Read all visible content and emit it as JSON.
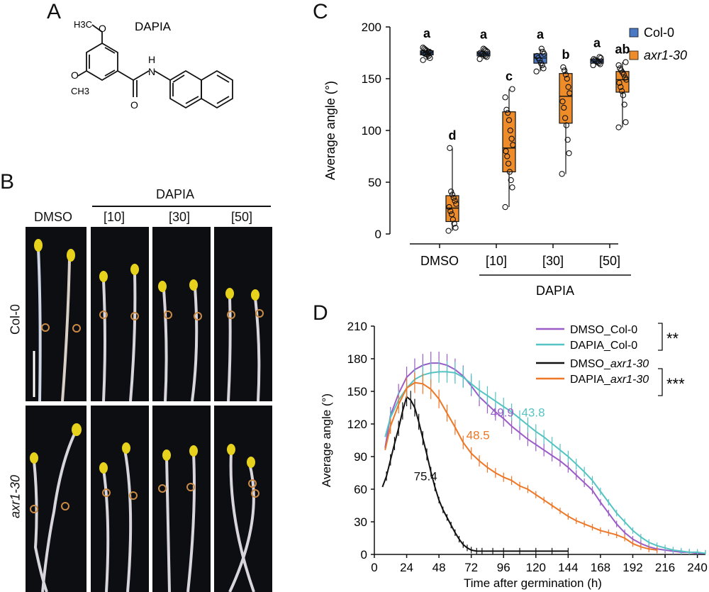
{
  "panels": {
    "a": {
      "letter": "A",
      "compound": "DAPIA",
      "atom_ch3_top": "H3C",
      "atom_ch3_bottom": "CH3",
      "atom_o1": "O",
      "atom_o2": "O",
      "atom_o3": "O",
      "atom_n": "N",
      "atom_h": "H"
    },
    "b": {
      "letter": "B",
      "treatment_group": "DAPIA",
      "columns": [
        "DMSO",
        "[10]",
        "[30]",
        "[50]"
      ],
      "rows": [
        "Col-0",
        "axr1-30"
      ]
    },
    "c": {
      "letter": "C"
    },
    "d": {
      "letter": "D"
    }
  },
  "chart_data": [
    {
      "type": "box",
      "id": "C",
      "ylabel": "Average angle (°)",
      "ylim": [
        0,
        200
      ],
      "yticks": [
        0,
        50,
        100,
        150,
        200
      ],
      "categories": [
        "DMSO",
        "[10]",
        "[30]",
        "[50]"
      ],
      "group_label": "DAPIA",
      "legend": [
        {
          "name": "Col-0",
          "color": "#4a78c4"
        },
        {
          "name": "axr1-30",
          "color": "#ef8c2a"
        }
      ],
      "series": [
        {
          "name": "Col-0",
          "color": "#4a78c4",
          "boxes": [
            {
              "category": "DMSO",
              "min": 168,
              "q1": 173,
              "median": 175,
              "q3": 177,
              "max": 180,
              "letter": "a",
              "points": [
                168,
                170,
                172,
                173,
                174,
                174,
                175,
                175,
                176,
                176,
                177,
                178,
                179,
                180
              ]
            },
            {
              "category": "[10]",
              "min": 169,
              "q1": 172,
              "median": 174,
              "q3": 176,
              "max": 179,
              "letter": "a",
              "points": [
                169,
                171,
                172,
                173,
                174,
                174,
                175,
                176,
                177,
                178,
                179
              ]
            },
            {
              "category": "[30]",
              "min": 157,
              "q1": 165,
              "median": 170,
              "q3": 174,
              "max": 179,
              "letter": "a",
              "points": [
                157,
                160,
                163,
                165,
                168,
                170,
                172,
                174,
                176,
                179
              ]
            },
            {
              "category": "[50]",
              "min": 163,
              "q1": 165,
              "median": 167,
              "q3": 169,
              "max": 171,
              "letter": "a",
              "points": [
                163,
                164,
                165,
                166,
                167,
                168,
                169,
                170,
                171
              ]
            }
          ]
        },
        {
          "name": "axr1-30",
          "color": "#ef8c2a",
          "boxes": [
            {
              "category": "DMSO",
              "min": 3,
              "q1": 12,
              "median": 25,
              "q3": 37,
              "max": 83,
              "letter": "d",
              "points": [
                3,
                6,
                10,
                14,
                19,
                22,
                26,
                29,
                32,
                35,
                38,
                41,
                83
              ]
            },
            {
              "category": "[10]",
              "min": 26,
              "q1": 60,
              "median": 83,
              "q3": 118,
              "max": 140,
              "letter": "c",
              "points": [
                26,
                45,
                52,
                60,
                68,
                75,
                80,
                86,
                92,
                100,
                110,
                117,
                120,
                132,
                140
              ]
            },
            {
              "category": "[30]",
              "min": 58,
              "q1": 107,
              "median": 133,
              "q3": 155,
              "max": 161,
              "letter": "b",
              "points": [
                58,
                78,
                91,
                105,
                112,
                122,
                128,
                136,
                142,
                150,
                154,
                158,
                161
              ]
            },
            {
              "category": "[50]",
              "min": 103,
              "q1": 137,
              "median": 149,
              "q3": 157,
              "max": 166,
              "letter": "ab",
              "points": [
                103,
                108,
                125,
                134,
                138,
                142,
                146,
                149,
                151,
                154,
                156,
                158,
                160,
                163,
                166
              ]
            }
          ]
        }
      ]
    },
    {
      "type": "line",
      "id": "D",
      "xlabel": "Time after germination (h)",
      "ylabel": "Average angle (°)",
      "xlim": [
        0,
        246
      ],
      "ylim": [
        0,
        210
      ],
      "xticks": [
        0,
        24,
        48,
        72,
        96,
        120,
        144,
        168,
        192,
        216,
        240
      ],
      "yticks": [
        0,
        30,
        60,
        90,
        120,
        150,
        180,
        210
      ],
      "significance": [
        {
          "label": "**",
          "pair": [
            "DMSO_Col-0",
            "DAPIA_Col-0"
          ]
        },
        {
          "label": "***",
          "pair": [
            "DMSO_axr1-30",
            "DAPIA_axr1-30"
          ]
        }
      ],
      "annotations": [
        {
          "text": "49.9",
          "series": "DMSO_Col-0",
          "x": 95,
          "y": 127
        },
        {
          "text": "43.8",
          "series": "DAPIA_Col-0",
          "x": 118,
          "y": 127
        },
        {
          "text": "48.5",
          "series": "DAPIA_axr1-30",
          "x": 77,
          "y": 106
        },
        {
          "text": "75.4",
          "series": "DMSO_axr1-30",
          "x": 38,
          "y": 68
        }
      ],
      "series": [
        {
          "name": "DMSO_Col-0",
          "legend_main": "DMSO_",
          "legend_genotype": "Col-0",
          "italic": false,
          "color": "#9a5cc6",
          "x": [
            8,
            12,
            18,
            24,
            30,
            36,
            42,
            48,
            54,
            60,
            66,
            72,
            78,
            84,
            90,
            96,
            102,
            108,
            114,
            120,
            126,
            132,
            138,
            144,
            150,
            156,
            162,
            168,
            174,
            180,
            186,
            192,
            198,
            204,
            210,
            216,
            222,
            228,
            234,
            240,
            246
          ],
          "y": [
            98,
            128,
            148,
            163,
            170,
            174,
            176,
            176,
            174,
            170,
            164,
            155,
            145,
            138,
            131,
            125,
            118,
            112,
            106,
            101,
            96,
            91,
            86,
            80,
            73,
            66,
            59,
            48,
            38,
            28,
            20,
            14,
            10,
            7,
            5,
            4,
            3,
            2,
            2,
            1,
            1
          ]
        },
        {
          "name": "DAPIA_Col-0",
          "legend_main": "DAPIA_",
          "legend_genotype": "Col-0",
          "italic": false,
          "color": "#56c3c3",
          "x": [
            8,
            12,
            18,
            24,
            30,
            36,
            42,
            48,
            54,
            60,
            66,
            72,
            78,
            84,
            90,
            96,
            102,
            108,
            114,
            120,
            126,
            132,
            138,
            144,
            150,
            156,
            162,
            168,
            174,
            180,
            186,
            192,
            198,
            204,
            210,
            216,
            222,
            228,
            234,
            240,
            246
          ],
          "y": [
            108,
            126,
            142,
            153,
            161,
            165,
            167,
            168,
            168,
            167,
            163,
            157,
            151,
            146,
            141,
            136,
            131,
            125,
            119,
            113,
            108,
            102,
            96,
            90,
            83,
            76,
            68,
            58,
            48,
            38,
            30,
            22,
            16,
            11,
            8,
            6,
            4,
            3,
            2,
            2,
            1
          ]
        },
        {
          "name": "DMSO_axr1-30",
          "legend_main": "DMSO_",
          "legend_genotype": "axr1-30",
          "italic": true,
          "color": "#111111",
          "x": [
            6,
            9,
            12,
            15,
            18,
            21,
            24,
            27,
            30,
            33,
            36,
            39,
            42,
            45,
            48,
            51,
            54,
            57,
            60,
            63,
            66,
            69,
            72,
            76,
            80,
            88,
            96,
            108,
            120,
            132,
            144
          ],
          "y": [
            62,
            72,
            87,
            102,
            116,
            132,
            145,
            142,
            135,
            122,
            107,
            92,
            76,
            62,
            50,
            41,
            34,
            27,
            20,
            14,
            9,
            6,
            4,
            3,
            3,
            3,
            3,
            3,
            3,
            3,
            3
          ]
        },
        {
          "name": "DAPIA_axr1-30",
          "legend_main": "DAPIA_",
          "legend_genotype": "axr1-30",
          "italic": true,
          "color": "#ee7728",
          "x": [
            8,
            12,
            18,
            24,
            30,
            36,
            42,
            48,
            54,
            60,
            66,
            72,
            78,
            84,
            90,
            96,
            102,
            108,
            114,
            120,
            126,
            132,
            138,
            144,
            150,
            156,
            162,
            168,
            174,
            180,
            186,
            192,
            198,
            204,
            210
          ],
          "y": [
            96,
            118,
            138,
            153,
            158,
            157,
            152,
            143,
            130,
            117,
            103,
            93,
            86,
            80,
            75,
            71,
            68,
            63,
            60,
            55,
            50,
            45,
            40,
            35,
            31,
            28,
            25,
            22,
            20,
            18,
            15,
            10,
            7,
            5,
            4
          ]
        }
      ]
    }
  ]
}
